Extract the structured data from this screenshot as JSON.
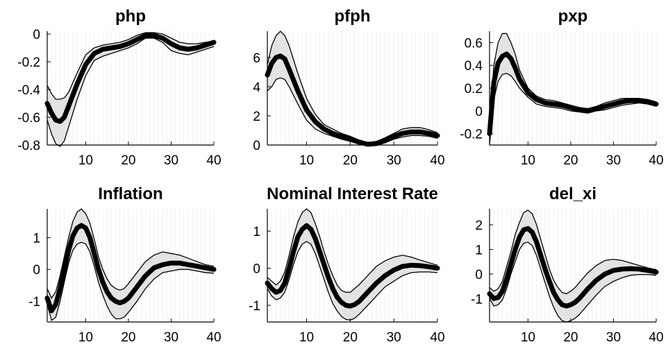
{
  "chart_data": [
    {
      "type": "line",
      "title": "php",
      "xlim": [
        1,
        40
      ],
      "ylim": [
        -0.8,
        0.02
      ],
      "xticks": [
        10,
        20,
        30,
        40
      ],
      "xtick_labels": [
        "10",
        "20",
        "30",
        "40"
      ],
      "yticks": [
        0,
        -0.2,
        -0.4,
        -0.6,
        -0.8
      ],
      "ytick_labels": [
        "0",
        "-0.2",
        "-0.4",
        "-0.6",
        "-0.8"
      ],
      "x": [
        1,
        2,
        3,
        4,
        5,
        6,
        8,
        10,
        12,
        14,
        16,
        18,
        20,
        22,
        24,
        26,
        28,
        30,
        32,
        34,
        36,
        38,
        40
      ],
      "median": [
        -0.5,
        -0.57,
        -0.62,
        -0.63,
        -0.6,
        -0.52,
        -0.36,
        -0.22,
        -0.14,
        -0.11,
        -0.1,
        -0.09,
        -0.07,
        -0.04,
        -0.01,
        -0.01,
        -0.03,
        -0.07,
        -0.1,
        -0.11,
        -0.1,
        -0.08,
        -0.06
      ],
      "upper": [
        -0.37,
        -0.43,
        -0.47,
        -0.47,
        -0.46,
        -0.42,
        -0.28,
        -0.15,
        -0.1,
        -0.08,
        -0.07,
        -0.06,
        -0.04,
        -0.01,
        0.01,
        0.01,
        0.0,
        -0.03,
        -0.06,
        -0.07,
        -0.07,
        -0.06,
        -0.05
      ],
      "lower": [
        -0.62,
        -0.72,
        -0.79,
        -0.81,
        -0.77,
        -0.67,
        -0.47,
        -0.3,
        -0.19,
        -0.16,
        -0.14,
        -0.12,
        -0.1,
        -0.07,
        -0.03,
        -0.03,
        -0.06,
        -0.12,
        -0.14,
        -0.15,
        -0.13,
        -0.11,
        -0.09
      ]
    },
    {
      "type": "line",
      "title": "pfph",
      "xlim": [
        1,
        40
      ],
      "ylim": [
        0,
        7.8
      ],
      "xticks": [
        10,
        20,
        30,
        40
      ],
      "xtick_labels": [
        "10",
        "20",
        "30",
        "40"
      ],
      "yticks": [
        0,
        2,
        4,
        6
      ],
      "ytick_labels": [
        "0",
        "2",
        "4",
        "6"
      ],
      "x": [
        1,
        2,
        3,
        4,
        5,
        6,
        8,
        10,
        12,
        14,
        16,
        18,
        20,
        22,
        24,
        26,
        28,
        30,
        32,
        34,
        36,
        38,
        40
      ],
      "median": [
        4.8,
        5.6,
        6.0,
        6.1,
        5.9,
        5.2,
        3.7,
        2.4,
        1.6,
        1.1,
        0.8,
        0.6,
        0.4,
        0.2,
        0.05,
        0.1,
        0.3,
        0.6,
        0.8,
        0.9,
        0.9,
        0.8,
        0.65
      ],
      "upper": [
        5.5,
        6.8,
        7.5,
        7.8,
        7.5,
        6.8,
        4.9,
        3.2,
        2.1,
        1.4,
        1.1,
        0.8,
        0.6,
        0.35,
        0.15,
        0.25,
        0.5,
        0.8,
        1.1,
        1.2,
        1.2,
        1.05,
        0.85
      ],
      "lower": [
        3.7,
        4.0,
        4.5,
        4.6,
        4.5,
        4.0,
        2.8,
        1.7,
        1.1,
        0.8,
        0.6,
        0.4,
        0.25,
        0.1,
        0.0,
        0.0,
        0.15,
        0.4,
        0.55,
        0.65,
        0.65,
        0.6,
        0.45
      ]
    },
    {
      "type": "line",
      "title": "pxp",
      "xlim": [
        1,
        40
      ],
      "ylim": [
        -0.3,
        0.7
      ],
      "xticks": [
        10,
        20,
        30,
        40
      ],
      "xtick_labels": [
        "10",
        "20",
        "30",
        "40"
      ],
      "yticks": [
        0.6,
        0.4,
        0.2,
        0,
        -0.2
      ],
      "ytick_labels": [
        "0.6",
        "0.4",
        "0.2",
        "0",
        "-0.2"
      ],
      "x": [
        1,
        2,
        3,
        4,
        5,
        6,
        7,
        8,
        10,
        12,
        14,
        16,
        18,
        20,
        22,
        24,
        26,
        28,
        30,
        32,
        34,
        36,
        38,
        40
      ],
      "median": [
        -0.2,
        0.25,
        0.42,
        0.48,
        0.5,
        0.46,
        0.38,
        0.28,
        0.16,
        0.1,
        0.07,
        0.06,
        0.05,
        0.03,
        0.01,
        0.0,
        0.02,
        0.04,
        0.06,
        0.08,
        0.09,
        0.09,
        0.08,
        0.06
      ],
      "upper": [
        -0.12,
        0.4,
        0.6,
        0.68,
        0.68,
        0.6,
        0.5,
        0.36,
        0.2,
        0.13,
        0.1,
        0.09,
        0.07,
        0.05,
        0.03,
        0.02,
        0.04,
        0.07,
        0.09,
        0.11,
        0.11,
        0.11,
        0.1,
        0.08
      ],
      "lower": [
        -0.3,
        0.1,
        0.26,
        0.32,
        0.33,
        0.31,
        0.26,
        0.2,
        0.12,
        0.06,
        0.04,
        0.03,
        0.02,
        0.0,
        -0.01,
        -0.02,
        0.0,
        0.01,
        0.03,
        0.05,
        0.06,
        0.07,
        0.06,
        0.04
      ]
    },
    {
      "type": "line",
      "title": "Inflation",
      "xlim": [
        1,
        40
      ],
      "ylim": [
        -1.65,
        1.9
      ],
      "xticks": [
        10,
        20,
        30,
        40
      ],
      "xtick_labels": [
        "10",
        "20",
        "30",
        "40"
      ],
      "yticks": [
        1,
        0,
        -1
      ],
      "ytick_labels": [
        "1",
        "0",
        "-1"
      ],
      "x": [
        1,
        2,
        3,
        4,
        5,
        6,
        7,
        8,
        9,
        10,
        11,
        12,
        13,
        14,
        15,
        16,
        17,
        18,
        19,
        20,
        22,
        24,
        26,
        28,
        30,
        32,
        34,
        36,
        38,
        40
      ],
      "median": [
        -0.9,
        -1.3,
        -1.1,
        -0.6,
        0.0,
        0.6,
        1.05,
        1.3,
        1.38,
        1.3,
        1.0,
        0.5,
        0.0,
        -0.4,
        -0.7,
        -0.9,
        -1.0,
        -1.05,
        -1.0,
        -0.9,
        -0.55,
        -0.2,
        0.05,
        0.15,
        0.2,
        0.2,
        0.15,
        0.1,
        0.05,
        0.0
      ],
      "upper": [
        -0.6,
        -0.9,
        -0.7,
        -0.2,
        0.4,
        1.0,
        1.5,
        1.8,
        1.9,
        1.75,
        1.45,
        0.95,
        0.4,
        0.0,
        -0.3,
        -0.5,
        -0.6,
        -0.65,
        -0.6,
        -0.45,
        -0.1,
        0.25,
        0.45,
        0.55,
        0.5,
        0.45,
        0.35,
        0.25,
        0.15,
        0.1
      ],
      "lower": [
        -1.1,
        -1.6,
        -1.5,
        -1.0,
        -0.4,
        0.2,
        0.6,
        0.8,
        0.85,
        0.8,
        0.55,
        0.1,
        -0.4,
        -0.8,
        -1.15,
        -1.4,
        -1.55,
        -1.55,
        -1.5,
        -1.35,
        -1.0,
        -0.6,
        -0.3,
        -0.1,
        -0.05,
        0.0,
        0.0,
        -0.05,
        -0.1,
        -0.12
      ]
    },
    {
      "type": "line",
      "title": "Nominal Interest Rate",
      "xlim": [
        1,
        40
      ],
      "ylim": [
        -1.45,
        1.6
      ],
      "xticks": [
        10,
        20,
        30,
        40
      ],
      "xtick_labels": [
        "10",
        "20",
        "30",
        "40"
      ],
      "yticks": [
        1,
        0,
        -1
      ],
      "ytick_labels": [
        "1",
        "0",
        "-1"
      ],
      "x": [
        1,
        2,
        3,
        4,
        5,
        6,
        7,
        8,
        9,
        10,
        11,
        12,
        13,
        14,
        15,
        16,
        17,
        18,
        19,
        20,
        21,
        22,
        24,
        26,
        28,
        30,
        32,
        34,
        36,
        38,
        40
      ],
      "median": [
        -0.4,
        -0.55,
        -0.65,
        -0.6,
        -0.4,
        0.0,
        0.45,
        0.85,
        1.05,
        1.15,
        1.05,
        0.8,
        0.45,
        0.1,
        -0.25,
        -0.55,
        -0.78,
        -0.92,
        -1.0,
        -1.02,
        -0.98,
        -0.9,
        -0.65,
        -0.4,
        -0.2,
        -0.05,
        0.05,
        0.08,
        0.07,
        0.04,
        0.0
      ],
      "upper": [
        -0.25,
        -0.35,
        -0.45,
        -0.35,
        -0.1,
        0.35,
        0.85,
        1.25,
        1.5,
        1.6,
        1.5,
        1.2,
        0.85,
        0.45,
        0.1,
        -0.2,
        -0.45,
        -0.6,
        -0.65,
        -0.65,
        -0.55,
        -0.45,
        -0.2,
        0.05,
        0.2,
        0.3,
        0.35,
        0.3,
        0.22,
        0.15,
        0.08
      ],
      "lower": [
        -0.55,
        -0.75,
        -0.85,
        -0.8,
        -0.65,
        -0.3,
        0.1,
        0.45,
        0.65,
        0.72,
        0.65,
        0.4,
        0.05,
        -0.3,
        -0.65,
        -0.95,
        -1.15,
        -1.3,
        -1.38,
        -1.4,
        -1.35,
        -1.25,
        -1.0,
        -0.75,
        -0.5,
        -0.35,
        -0.2,
        -0.12,
        -0.1,
        -0.1,
        -0.12
      ]
    },
    {
      "type": "line",
      "title": "del_xi",
      "xlim": [
        1,
        40
      ],
      "ylim": [
        -1.95,
        2.65
      ],
      "xticks": [
        10,
        20,
        30,
        40
      ],
      "xtick_labels": [
        "10",
        "20",
        "30",
        "40"
      ],
      "yticks": [
        2,
        1,
        0,
        -1
      ],
      "ytick_labels": [
        "2",
        "1",
        "0",
        "-1"
      ],
      "x": [
        1,
        2,
        3,
        4,
        5,
        6,
        7,
        8,
        9,
        10,
        11,
        12,
        13,
        14,
        15,
        16,
        17,
        18,
        19,
        20,
        21,
        22,
        24,
        26,
        28,
        30,
        32,
        34,
        36,
        38,
        40
      ],
      "median": [
        -0.8,
        -1.0,
        -0.95,
        -0.7,
        -0.2,
        0.4,
        1.0,
        1.5,
        1.8,
        1.85,
        1.7,
        1.3,
        0.75,
        0.2,
        -0.3,
        -0.75,
        -1.05,
        -1.25,
        -1.3,
        -1.25,
        -1.15,
        -1.0,
        -0.6,
        -0.25,
        0.0,
        0.15,
        0.2,
        0.22,
        0.2,
        0.15,
        0.08
      ],
      "upper": [
        -0.55,
        -0.7,
        -0.6,
        -0.3,
        0.3,
        0.9,
        1.6,
        2.1,
        2.5,
        2.6,
        2.45,
        2.0,
        1.4,
        0.8,
        0.2,
        -0.25,
        -0.55,
        -0.75,
        -0.8,
        -0.7,
        -0.55,
        -0.35,
        0.05,
        0.35,
        0.55,
        0.6,
        0.55,
        0.45,
        0.35,
        0.25,
        0.18
      ],
      "lower": [
        -1.0,
        -1.3,
        -1.25,
        -1.05,
        -0.6,
        0.0,
        0.5,
        1.0,
        1.25,
        1.3,
        1.15,
        0.75,
        0.2,
        -0.35,
        -0.9,
        -1.35,
        -1.7,
        -1.9,
        -1.95,
        -1.9,
        -1.8,
        -1.65,
        -1.25,
        -0.85,
        -0.5,
        -0.3,
        -0.15,
        -0.05,
        -0.02,
        -0.02,
        -0.05
      ]
    }
  ]
}
